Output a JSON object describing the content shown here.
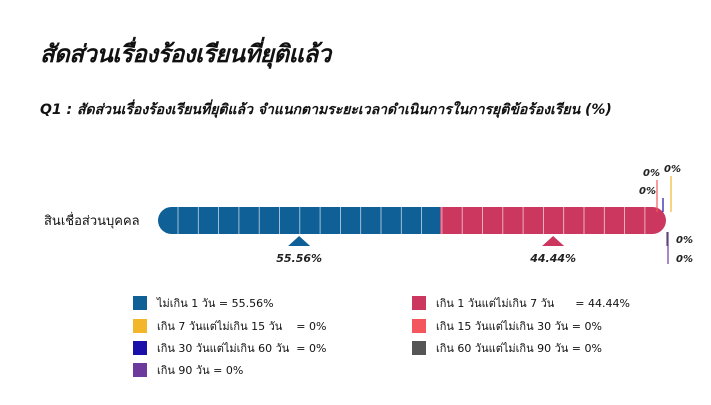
{
  "title": "สัดส่วนเรื่องร้องเรียนที่ยุติแล้ว",
  "subtitle": "Q1 : สัดส่วนเรื่องร้องเรียนที่ยุติแล้ว จำแนกตามระยะเวลาดำเนินการในการยุติข้อร้องเรียน (%)",
  "chart_data": {
    "type": "bar",
    "orientation": "horizontal-stacked",
    "categories": [
      "สินเชื่อส่วนบุคคล"
    ],
    "xlim": [
      0,
      100
    ],
    "series": [
      {
        "name": "ไม่เกิน 1 วัน",
        "values": [
          55.56
        ],
        "color": "#0e6096",
        "label": "55.56%",
        "legend": "ไม่เกิน 1 วัน = 55.56%"
      },
      {
        "name": "เกิน 1 วันแต่ไม่เกิน 7 วัน",
        "values": [
          44.44
        ],
        "color": "#cc3760",
        "label": "44.44%",
        "legend": "เกิน 1 วันแต่ไม่เกิน 7 วัน      = 44.44%"
      },
      {
        "name": "เกิน 7 วันแต่ไม่เกิน 15 วัน",
        "values": [
          0
        ],
        "color": "#f3b52a",
        "label": "0%",
        "legend": "เกิน 7 วันแต่ไม่เกิน 15 วัน    = 0%"
      },
      {
        "name": "เกิน 15 วันแต่ไม่เกิน 30 วัน",
        "values": [
          0
        ],
        "color": "#f4565d",
        "label": "0%",
        "legend": "เกิน 15 วันแต่ไม่เกิน 30 วัน = 0%"
      },
      {
        "name": "เกิน 30 วันแต่ไม่เกิน 60 วัน",
        "values": [
          0
        ],
        "color": "#1a0fa8",
        "label": "0%",
        "legend": "เกิน 30 วันแต่ไม่เกิน 60 วัน  = 0%"
      },
      {
        "name": "เกิน 60 วันแต่ไม่เกิน 90 วัน",
        "values": [
          0
        ],
        "color": "#555555",
        "label": "0%",
        "legend": "เกิน 60 วันแต่ไม่เกิน 90 วัน = 0%"
      },
      {
        "name": "เกิน 90 วัน",
        "values": [
          0
        ],
        "color": "#6b3a9c",
        "label": "0%",
        "legend": "เกิน 90 วัน = 0%"
      }
    ]
  }
}
